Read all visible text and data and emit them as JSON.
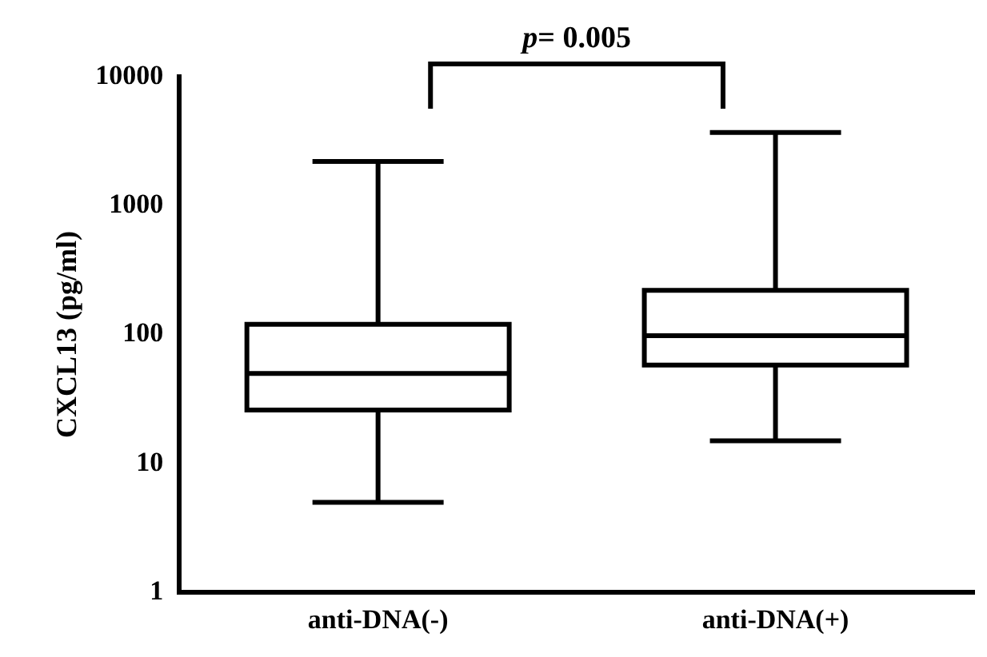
{
  "chart_data": {
    "type": "box",
    "ylabel": "CXCL13 (pg/ml)",
    "categories": [
      "anti-DNA(-)",
      "anti-DNA(+)"
    ],
    "boxes": [
      {
        "low": 5,
        "q1": 26,
        "median": 50,
        "q3": 120,
        "high": 2200
      },
      {
        "low": 15,
        "q1": 58,
        "median": 98,
        "q3": 220,
        "high": 3700
      }
    ],
    "color": "#000000",
    "log": true,
    "ylim": [
      1,
      10000
    ],
    "yticks": [
      1,
      10,
      100,
      1000,
      10000
    ],
    "grid": false,
    "legend": false,
    "annotations": [
      "p= 0.005"
    ]
  }
}
